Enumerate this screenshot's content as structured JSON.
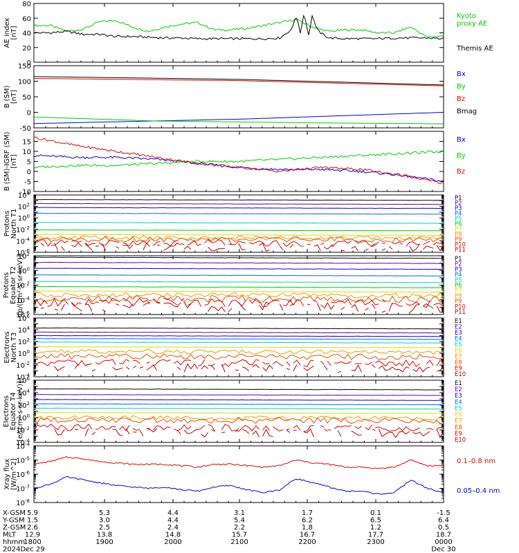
{
  "colors": {
    "black": "#000000",
    "red": "#e00000",
    "green": "#00cc00",
    "blue": "#0000e0",
    "purple": "#660099",
    "cyan": "#00cccc",
    "yellow": "#dddd00",
    "orange": "#ee9900",
    "darkorange": "#dd5500"
  },
  "chart_data": [
    {
      "type": "line",
      "id": "ae",
      "ylabel_lines": [
        "AE index",
        "[nT]"
      ],
      "ylim": [
        0,
        80
      ],
      "yticks": [
        "0",
        "20",
        "40",
        "60",
        "80"
      ],
      "ytick_values": [
        0,
        20,
        40,
        60,
        80
      ],
      "legend": [
        {
          "text": "Kyoto",
          "color": "#00cc00"
        },
        {
          "text": "proxy AE",
          "color": "#00cc00"
        },
        {
          "text": "Themis AE",
          "color": "#000000"
        }
      ],
      "series": [
        {
          "name": "Kyoto proxy AE",
          "color": "#00cc00",
          "x": [
            0,
            0.04,
            0.08,
            0.12,
            0.16,
            0.2,
            0.24,
            0.28,
            0.32,
            0.36,
            0.4,
            0.44,
            0.48,
            0.52,
            0.56,
            0.6,
            0.64,
            0.68,
            0.72,
            0.76,
            0.8,
            0.84,
            0.88,
            0.92,
            0.96,
            1.0
          ],
          "y": [
            50,
            50,
            42,
            45,
            55,
            57,
            48,
            42,
            48,
            52,
            54,
            44,
            44,
            46,
            50,
            54,
            58,
            48,
            42,
            44,
            44,
            40,
            40,
            48,
            34,
            36
          ]
        },
        {
          "name": "Themis AE",
          "color": "#000000",
          "x": [
            0,
            0.04,
            0.08,
            0.12,
            0.16,
            0.2,
            0.24,
            0.28,
            0.32,
            0.36,
            0.4,
            0.44,
            0.48,
            0.52,
            0.56,
            0.6,
            0.63,
            0.64,
            0.65,
            0.66,
            0.67,
            0.68,
            0.69,
            0.7,
            0.72,
            0.76,
            0.8,
            0.84,
            0.88,
            0.92,
            0.96,
            1.0
          ],
          "y": [
            40,
            40,
            42,
            38,
            38,
            35,
            35,
            34,
            33,
            33,
            32,
            32,
            32,
            32,
            32,
            33,
            45,
            65,
            40,
            68,
            35,
            65,
            45,
            40,
            33,
            32,
            32,
            32,
            33,
            33,
            33,
            32
          ]
        }
      ]
    },
    {
      "type": "line",
      "id": "bsm",
      "ylabel_lines": [
        "B (SM)",
        "[nT]"
      ],
      "ylim": [
        -50,
        150
      ],
      "yticks": [
        "-50",
        "0",
        "50",
        "100",
        "150"
      ],
      "ytick_values": [
        -50,
        0,
        50,
        100,
        150
      ],
      "legend": [
        {
          "text": "Bx",
          "color": "#0000e0"
        },
        {
          "text": "By",
          "color": "#00cc00"
        },
        {
          "text": "Bz",
          "color": "#e00000"
        },
        {
          "text": "Bmag",
          "color": "#000000"
        }
      ],
      "series": [
        {
          "name": "Bx",
          "color": "#0000e0",
          "x": [
            0,
            0.5,
            1.0
          ],
          "y": [
            -36,
            -22,
            0
          ]
        },
        {
          "name": "By",
          "color": "#00cc00",
          "x": [
            0,
            0.3,
            0.7,
            1.0
          ],
          "y": [
            -15,
            -28,
            -34,
            -37
          ]
        },
        {
          "name": "Bz",
          "color": "#e00000",
          "x": [
            0,
            0.5,
            1.0
          ],
          "y": [
            109,
            102,
            85
          ]
        },
        {
          "name": "Bmag",
          "color": "#000000",
          "x": [
            0,
            0.5,
            1.0
          ],
          "y": [
            115,
            106,
            88
          ]
        }
      ]
    },
    {
      "type": "line",
      "id": "bdiff",
      "ylabel_lines": [
        "B (SM)-IGRF (SM)",
        "[nT]"
      ],
      "ylim": [
        -10,
        20
      ],
      "yticks": [
        "-10",
        "-5",
        "0",
        "5",
        "10",
        "15"
      ],
      "ytick_values": [
        -10,
        -5,
        0,
        5,
        10,
        15
      ],
      "legend": [
        {
          "text": "Bx",
          "color": "#0000e0"
        },
        {
          "text": "By",
          "color": "#00cc00"
        },
        {
          "text": "Bz",
          "color": "#e00000"
        }
      ],
      "series": [
        {
          "name": "Bx",
          "color": "#0000e0",
          "x": [
            0,
            0.1,
            0.2,
            0.3,
            0.4,
            0.5,
            0.6,
            0.7,
            0.8,
            0.9,
            1.0
          ],
          "y": [
            8,
            7,
            7,
            6,
            4,
            2,
            1,
            1,
            0,
            -2,
            -5
          ]
        },
        {
          "name": "By",
          "color": "#00cc00",
          "x": [
            0,
            0.1,
            0.2,
            0.3,
            0.4,
            0.5,
            0.6,
            0.7,
            0.8,
            0.9,
            1.0
          ],
          "y": [
            2,
            3,
            3,
            4,
            5,
            5,
            6,
            7,
            8,
            9,
            10
          ]
        },
        {
          "name": "Bz",
          "color": "#e00000",
          "x": [
            0,
            0.1,
            0.2,
            0.3,
            0.4,
            0.5,
            0.6,
            0.7,
            0.8,
            0.9,
            1.0
          ],
          "y": [
            17,
            13,
            10,
            7,
            4,
            2,
            0,
            2,
            1,
            -2,
            -6
          ]
        }
      ]
    },
    {
      "type": "line",
      "id": "pn",
      "log": true,
      "ylabel_lines": [
        "Protons",
        "North T1"
      ],
      "ylim_exp": [
        -6,
        4
      ],
      "yticks_exp": [
        -6,
        -4,
        -2,
        0,
        2,
        4
      ],
      "legend": [
        {
          "text": "P1",
          "color": "#000000"
        },
        {
          "text": "P2",
          "color": "#660099"
        },
        {
          "text": "P3",
          "color": "#0000e0"
        },
        {
          "text": "P4",
          "color": "#0066ff"
        },
        {
          "text": "P5",
          "color": "#00cccc"
        },
        {
          "text": "P6",
          "color": "#00cc00"
        },
        {
          "text": "P7",
          "color": "#dddd00"
        },
        {
          "text": "P8",
          "color": "#ee9900"
        },
        {
          "text": "P9",
          "color": "#dd5500"
        },
        {
          "text": "P10",
          "color": "#e00000"
        },
        {
          "text": "P11",
          "color": "#b00000"
        }
      ],
      "channels": [
        {
          "name": "P1",
          "color": "#000000",
          "exp": 3.2
        },
        {
          "name": "P2",
          "color": "#660099",
          "exp": 2.5
        },
        {
          "name": "P3",
          "color": "#0000e0",
          "exp": 1.8
        },
        {
          "name": "P4",
          "color": "#0066ff",
          "exp": 0.8
        },
        {
          "name": "P5",
          "color": "#00cccc",
          "exp": -0.8
        },
        {
          "name": "P6",
          "color": "#00cc00",
          "exp": -2.1
        },
        {
          "name": "P7",
          "color": "#dddd00",
          "exp": -2.9
        },
        {
          "name": "P8",
          "color": "#ee9900",
          "exp": -3.4
        },
        {
          "name": "P9",
          "color": "#dd5500",
          "exp": -3.7
        },
        {
          "name": "P10",
          "color": "#e00000",
          "exp": -4.3
        },
        {
          "name": "P11",
          "color": "#b00000",
          "exp": -5.0
        }
      ]
    },
    {
      "type": "line",
      "id": "pe",
      "log": true,
      "ylabel_lines": [
        "Protons",
        "Equator T2",
        "[p/(cm²-s-sr-keV)]"
      ],
      "ylim_exp": [
        -6,
        2
      ],
      "yticks_exp": [
        -6,
        -4,
        -2,
        0,
        2
      ],
      "legend": [
        {
          "text": "P1",
          "color": "#000000"
        },
        {
          "text": "P2",
          "color": "#660099"
        },
        {
          "text": "P3",
          "color": "#0000e0"
        },
        {
          "text": "P4",
          "color": "#0066ff"
        },
        {
          "text": "P5",
          "color": "#00cccc"
        },
        {
          "text": "P6",
          "color": "#00cc00"
        },
        {
          "text": "P7",
          "color": "#dddd00"
        },
        {
          "text": "P8",
          "color": "#ee9900"
        },
        {
          "text": "P9",
          "color": "#dd5500"
        },
        {
          "text": "P10",
          "color": "#e00000"
        },
        {
          "text": "P11",
          "color": "#b00000"
        }
      ],
      "channels": [
        {
          "name": "P1",
          "color": "#000000",
          "exp": 1.8
        },
        {
          "name": "P2",
          "color": "#660099",
          "exp": 1.1
        },
        {
          "name": "P3",
          "color": "#0000e0",
          "exp": 0.3
        },
        {
          "name": "P4",
          "color": "#0066ff",
          "exp": -0.6
        },
        {
          "name": "P5",
          "color": "#00cccc",
          "exp": -1.5
        },
        {
          "name": "P6",
          "color": "#00cc00",
          "exp": -2.2
        },
        {
          "name": "P7",
          "color": "#dddd00",
          "exp": -2.8
        },
        {
          "name": "P8",
          "color": "#ee9900",
          "exp": -3.3
        },
        {
          "name": "P9",
          "color": "#dd5500",
          "exp": -3.8
        },
        {
          "name": "P10",
          "color": "#e00000",
          "exp": -4.3
        },
        {
          "name": "P11",
          "color": "#b00000",
          "exp": -4.9
        }
      ]
    },
    {
      "type": "line",
      "id": "en",
      "log": true,
      "ylabel_lines": [
        "Electrons",
        "North T3"
      ],
      "ylim_exp": [
        -4,
        6
      ],
      "yticks_exp": [
        -4,
        -2,
        0,
        2,
        4,
        6
      ],
      "legend": [
        {
          "text": "E1",
          "color": "#000000"
        },
        {
          "text": "E2",
          "color": "#660099"
        },
        {
          "text": "E3",
          "color": "#0000e0"
        },
        {
          "text": "E4",
          "color": "#0066ff"
        },
        {
          "text": "E5",
          "color": "#00cccc"
        },
        {
          "text": "E6",
          "color": "#dddd00"
        },
        {
          "text": "E7",
          "color": "#ee9900"
        },
        {
          "text": "E8",
          "color": "#dd5500"
        },
        {
          "text": "E9",
          "color": "#e00000"
        },
        {
          "text": "E10",
          "color": "#b00000"
        }
      ],
      "channels": [
        {
          "name": "E1",
          "color": "#000000",
          "exp": 4.3
        },
        {
          "name": "E2",
          "color": "#660099",
          "exp": 3.6
        },
        {
          "name": "E3",
          "color": "#0000e0",
          "exp": 3.0
        },
        {
          "name": "E4",
          "color": "#0066ff",
          "exp": 2.5
        },
        {
          "name": "E5",
          "color": "#00cccc",
          "exp": 1.9
        },
        {
          "name": "E6",
          "color": "#dddd00",
          "exp": 1.1
        },
        {
          "name": "E7",
          "color": "#ee9900",
          "exp": 0.3
        },
        {
          "name": "E8",
          "color": "#dd5500",
          "exp": -0.5
        },
        {
          "name": "E9",
          "color": "#e00000",
          "exp": -1.6
        },
        {
          "name": "E10",
          "color": "#b00000",
          "exp": -2.5
        }
      ]
    },
    {
      "type": "line",
      "id": "ee",
      "log": true,
      "ylabel_lines": [
        "Electrons",
        "Equator T4",
        "[e/(cm²-s-sr-keV)]"
      ],
      "ylim_exp": [
        -4,
        6
      ],
      "yticks_exp": [
        -4,
        -2,
        0,
        2,
        4,
        6
      ],
      "legend": [
        {
          "text": "E1",
          "color": "#000000"
        },
        {
          "text": "E2",
          "color": "#660099"
        },
        {
          "text": "E3",
          "color": "#0000e0"
        },
        {
          "text": "E4",
          "color": "#0066ff"
        },
        {
          "text": "E5",
          "color": "#00cccc"
        },
        {
          "text": "E6",
          "color": "#dddd00"
        },
        {
          "text": "E7",
          "color": "#ee9900"
        },
        {
          "text": "E8",
          "color": "#dd5500"
        },
        {
          "text": "E9",
          "color": "#e00000"
        },
        {
          "text": "E10",
          "color": "#b00000"
        }
      ],
      "channels": [
        {
          "name": "E1",
          "color": "#000000",
          "exp": 4.6
        },
        {
          "name": "E2",
          "color": "#660099",
          "exp": 3.7
        },
        {
          "name": "E3",
          "color": "#0000e0",
          "exp": 2.9
        },
        {
          "name": "E4",
          "color": "#0066ff",
          "exp": 2.2
        },
        {
          "name": "E5",
          "color": "#00cccc",
          "exp": 1.5
        },
        {
          "name": "E6",
          "color": "#dddd00",
          "exp": 0.8
        },
        {
          "name": "E7",
          "color": "#ee9900",
          "exp": 0.0
        },
        {
          "name": "E8",
          "color": "#dd5500",
          "exp": -0.4
        },
        {
          "name": "E9",
          "color": "#e00000",
          "exp": -1.6
        },
        {
          "name": "E10",
          "color": "#b00000",
          "exp": -2.4
        }
      ]
    },
    {
      "type": "line",
      "id": "xray",
      "log": true,
      "ylabel_lines": [
        "Xray flux",
        "[W/m^2]"
      ],
      "ylim_exp": [
        -8,
        -4
      ],
      "yticks_exp": [
        -8,
        -7,
        -6,
        -5,
        -4
      ],
      "legend": [
        {
          "text": "0.1–0.8 nm",
          "color": "#e00000"
        },
        {
          "text": "0.05–0.4 nm",
          "color": "#0000e0"
        }
      ],
      "series": [
        {
          "name": "0.1–0.8 nm",
          "color": "#e00000",
          "x": [
            0,
            0.04,
            0.08,
            0.12,
            0.16,
            0.2,
            0.24,
            0.28,
            0.32,
            0.36,
            0.4,
            0.44,
            0.48,
            0.52,
            0.56,
            0.6,
            0.64,
            0.68,
            0.72,
            0.76,
            0.8,
            0.84,
            0.88,
            0.92,
            0.96,
            1.0
          ],
          "y": [
            -5.3,
            -5.1,
            -4.8,
            -4.9,
            -5.1,
            -5.2,
            -5.3,
            -5.3,
            -5.3,
            -5.4,
            -5.5,
            -5.3,
            -5.3,
            -5.4,
            -5.5,
            -5.4,
            -5.0,
            -5.2,
            -5.3,
            -5.5,
            -5.5,
            -5.6,
            -5.5,
            -5.0,
            -5.4,
            -5.4
          ]
        },
        {
          "name": "0.05–0.4 nm",
          "color": "#0000e0",
          "x": [
            0,
            0.04,
            0.08,
            0.12,
            0.16,
            0.2,
            0.24,
            0.28,
            0.32,
            0.36,
            0.4,
            0.44,
            0.48,
            0.52,
            0.56,
            0.6,
            0.64,
            0.68,
            0.72,
            0.76,
            0.8,
            0.84,
            0.88,
            0.92,
            0.96,
            1.0
          ],
          "y": [
            -7.0,
            -6.7,
            -6.2,
            -6.4,
            -6.6,
            -6.8,
            -6.9,
            -7.0,
            -6.9,
            -7.1,
            -7.2,
            -6.9,
            -6.8,
            -7.1,
            -7.3,
            -7.1,
            -6.3,
            -6.6,
            -6.9,
            -7.2,
            -7.2,
            -7.4,
            -7.3,
            -6.4,
            -7.0,
            -7.3
          ]
        }
      ]
    }
  ],
  "bottom_axis": {
    "rows": [
      {
        "label": "X-GSM",
        "values": [
          "5.9",
          "5.3",
          "4.4",
          "3.1",
          "1.7",
          "0.1",
          "-1.5"
        ]
      },
      {
        "label": "Y-GSM",
        "values": [
          "1.5",
          "3.0",
          "4.4",
          "5.4",
          "6.2",
          "6.5",
          "6.4"
        ]
      },
      {
        "label": "Z-GSM",
        "values": [
          "2.6",
          "2.5",
          "2.4",
          "2.2",
          "1.8",
          "1.2",
          "0.5"
        ]
      },
      {
        "label": "MLT",
        "values": [
          "12.9",
          "13.8",
          "14.8",
          "15.7",
          "16.7",
          "17.7",
          "18.7"
        ]
      },
      {
        "label": "hhmm",
        "values": [
          "1800",
          "1900",
          "2000",
          "2100",
          "2200",
          "2300",
          "0000"
        ]
      },
      {
        "label": "2024",
        "values": [
          "Dec 29",
          "",
          "",
          "",
          "",
          "",
          "Dec 30"
        ]
      }
    ]
  }
}
